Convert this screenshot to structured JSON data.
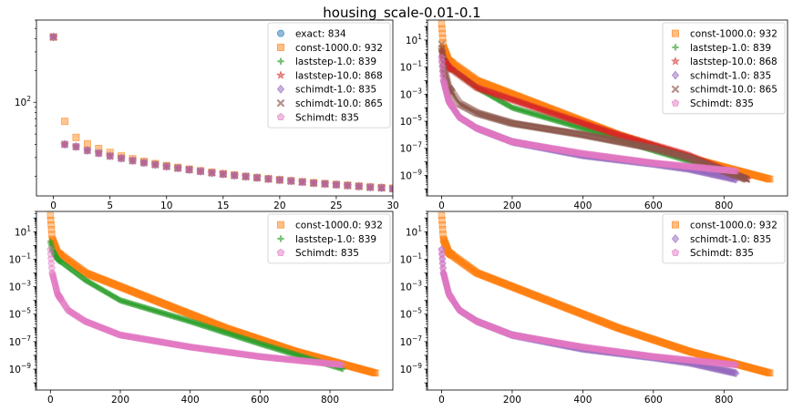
{
  "figure": {
    "title": "housing_scale-0.01-0.1"
  },
  "colors": {
    "exact": "#1f77b4",
    "const-1000.0": "#ff7f0e",
    "laststep-1.0": "#2ca02c",
    "laststep-10.0": "#d62728",
    "schimdt-1.0": "#9467bd",
    "schimdt-10.0": "#8c564b",
    "Schimdt": "#e377c2"
  },
  "chart_data": [
    {
      "type": "scatter",
      "panel": "top-left",
      "title": "",
      "xlabel": "",
      "ylabel": "",
      "xlim": [
        -1.5,
        30
      ],
      "ylim": [
        13,
        600
      ],
      "yscale": "log",
      "grid": false,
      "legend_position": "top-right",
      "x_ticks": [
        0,
        5,
        10,
        15,
        20,
        25,
        30
      ],
      "y_ticks": [
        {
          "value": 100,
          "base": "10",
          "exp": "2"
        }
      ],
      "series": [
        {
          "key": "exact",
          "name": "exact: 834",
          "marker": "circle"
        },
        {
          "key": "const-1000.0",
          "name": "const-1000.0: 932",
          "marker": "square"
        },
        {
          "key": "laststep-1.0",
          "name": "laststep-1.0: 839",
          "marker": "plus"
        },
        {
          "key": "laststep-10.0",
          "name": "laststep-10.0: 868",
          "marker": "star"
        },
        {
          "key": "schimdt-1.0",
          "name": "schimdt-1.0: 835",
          "marker": "diamond"
        },
        {
          "key": "schimdt-10.0",
          "name": "schimdt-10.0: 865",
          "marker": "xcross"
        },
        {
          "key": "Schimdt",
          "name": "Schimdt: 835",
          "marker": "pentagon"
        }
      ],
      "points": {
        "const-1000.0": {
          "x": [
            0,
            1,
            2,
            3,
            4,
            5,
            6,
            7,
            8,
            9,
            10,
            11,
            12,
            13,
            14,
            15,
            16,
            17,
            18,
            19,
            20,
            21,
            22,
            23,
            24,
            25,
            26,
            27,
            28,
            29,
            30
          ],
          "y": [
            415,
            66,
            46.5,
            40.5,
            36.5,
            33.5,
            31,
            29.2,
            27.6,
            26.3,
            25.2,
            24.2,
            23.3,
            22.5,
            21.8,
            21.1,
            20.5,
            19.9,
            19.4,
            18.9,
            18.5,
            18.1,
            17.7,
            17.3,
            17.0,
            16.7,
            16.4,
            16.1,
            15.8,
            15.6,
            15.4
          ]
        },
        "others": {
          "x": [
            0,
            1,
            2,
            3,
            4,
            5,
            6,
            7,
            8,
            9,
            10,
            11,
            12,
            13,
            14,
            15,
            16,
            17,
            18,
            19,
            20,
            21,
            22,
            23,
            24,
            25,
            26,
            27,
            28,
            29,
            30
          ],
          "y": [
            415,
            40,
            38,
            35,
            33,
            31,
            29.5,
            28,
            26.8,
            25.7,
            24.7,
            23.8,
            23.0,
            22.2,
            21.5,
            20.9,
            20.3,
            19.8,
            19.3,
            18.8,
            18.4,
            18.0,
            17.6,
            17.2,
            16.9,
            16.6,
            16.3,
            16.0,
            15.7,
            15.5,
            15.2
          ]
        }
      }
    },
    {
      "type": "scatter",
      "panel": "top-right",
      "title": "",
      "xlabel": "",
      "ylabel": "",
      "xlim": [
        -40,
        980
      ],
      "ylim": [
        3e-11,
        300
      ],
      "yscale": "log",
      "grid": false,
      "legend_position": "top-right",
      "x_ticks": [
        0,
        200,
        400,
        600,
        800
      ],
      "y_ticks": [
        {
          "value": 10,
          "base": "10",
          "exp": "1"
        },
        {
          "value": 0.1,
          "base": "10",
          "exp": "−1"
        },
        {
          "value": 0.001,
          "base": "10",
          "exp": "−3"
        },
        {
          "value": 1e-05,
          "base": "10",
          "exp": "−5"
        },
        {
          "value": 1e-07,
          "base": "10",
          "exp": "−7"
        },
        {
          "value": 1e-09,
          "base": "10",
          "exp": "−9"
        }
      ],
      "series": [
        {
          "key": "const-1000.0",
          "name": "const-1000.0: 932",
          "marker": "square",
          "curve": [
            [
              0,
              150
            ],
            [
              5,
              3
            ],
            [
              20,
              0.3
            ],
            [
              100,
              0.01
            ],
            [
              300,
              0.0001
            ],
            [
              500,
              1e-06
            ],
            [
              700,
              2e-08
            ],
            [
              932,
              5e-10
            ]
          ]
        },
        {
          "key": "laststep-1.0",
          "name": "laststep-1.0: 839",
          "marker": "plus",
          "curve": [
            [
              0,
              2
            ],
            [
              5,
              0.5
            ],
            [
              20,
              0.1
            ],
            [
              100,
              0.003
            ],
            [
              200,
              0.0001
            ],
            [
              400,
              3e-06
            ],
            [
              600,
              7e-08
            ],
            [
              839,
              1e-09
            ]
          ]
        },
        {
          "key": "laststep-10.0",
          "name": "laststep-10.0: 868",
          "marker": "star",
          "curve": [
            [
              0,
              2
            ],
            [
              5,
              0.4
            ],
            [
              20,
              0.1
            ],
            [
              100,
              0.003
            ],
            [
              300,
              5e-05
            ],
            [
              500,
              1e-06
            ],
            [
              700,
              3e-08
            ],
            [
              868,
              5e-10
            ]
          ]
        },
        {
          "key": "schimdt-1.0",
          "name": "schimdt-1.0: 835",
          "marker": "diamond",
          "curve": [
            [
              0,
              0.5
            ],
            [
              5,
              0.01
            ],
            [
              20,
              0.0003
            ],
            [
              50,
              2e-05
            ],
            [
              100,
              3e-06
            ],
            [
              200,
              3e-07
            ],
            [
              400,
              3e-08
            ],
            [
              600,
              7e-09
            ],
            [
              700,
              3e-09
            ],
            [
              835,
              5e-10
            ]
          ]
        },
        {
          "key": "schimdt-10.0",
          "name": "schimdt-10.0: 865",
          "marker": "xcross",
          "curve": [
            [
              0,
              5
            ],
            [
              5,
              0.1
            ],
            [
              20,
              0.003
            ],
            [
              50,
              0.0002
            ],
            [
              100,
              4e-05
            ],
            [
              200,
              7e-06
            ],
            [
              400,
              1e-06
            ],
            [
              600,
              1e-07
            ],
            [
              700,
              2e-08
            ],
            [
              865,
              5e-10
            ]
          ]
        },
        {
          "key": "Schimdt",
          "name": "Schimdt: 835",
          "marker": "pentagon",
          "curve": [
            [
              0,
              0.5
            ],
            [
              5,
              0.01
            ],
            [
              20,
              0.0003
            ],
            [
              50,
              2e-05
            ],
            [
              100,
              3e-06
            ],
            [
              200,
              3e-07
            ],
            [
              400,
              4e-08
            ],
            [
              600,
              8e-09
            ],
            [
              835,
              2e-09
            ]
          ]
        }
      ]
    },
    {
      "type": "scatter",
      "panel": "bottom-left",
      "title": "",
      "xlabel": "",
      "ylabel": "",
      "xlim": [
        -40,
        980
      ],
      "ylim": [
        3e-11,
        300
      ],
      "yscale": "log",
      "grid": false,
      "legend_position": "top-right",
      "x_ticks": [
        0,
        200,
        400,
        600,
        800
      ],
      "y_ticks": [
        {
          "value": 10,
          "base": "10",
          "exp": "1"
        },
        {
          "value": 0.1,
          "base": "10",
          "exp": "−1"
        },
        {
          "value": 0.001,
          "base": "10",
          "exp": "−3"
        },
        {
          "value": 1e-05,
          "base": "10",
          "exp": "−5"
        },
        {
          "value": 1e-07,
          "base": "10",
          "exp": "−7"
        },
        {
          "value": 1e-09,
          "base": "10",
          "exp": "−9"
        }
      ],
      "series": [
        {
          "key": "const-1000.0",
          "name": "const-1000.0: 932",
          "marker": "square",
          "curve": [
            [
              0,
              150
            ],
            [
              5,
              3
            ],
            [
              20,
              0.3
            ],
            [
              100,
              0.01
            ],
            [
              300,
              0.0001
            ],
            [
              500,
              1e-06
            ],
            [
              700,
              2e-08
            ],
            [
              932,
              5e-10
            ]
          ]
        },
        {
          "key": "laststep-1.0",
          "name": "laststep-1.0: 839",
          "marker": "plus",
          "curve": [
            [
              0,
              2
            ],
            [
              5,
              0.5
            ],
            [
              20,
              0.1
            ],
            [
              100,
              0.003
            ],
            [
              200,
              0.0001
            ],
            [
              400,
              3e-06
            ],
            [
              600,
              7e-08
            ],
            [
              839,
              1e-09
            ]
          ]
        },
        {
          "key": "Schimdt",
          "name": "Schimdt: 835",
          "marker": "pentagon",
          "curve": [
            [
              0,
              0.5
            ],
            [
              5,
              0.01
            ],
            [
              20,
              0.0003
            ],
            [
              50,
              2e-05
            ],
            [
              100,
              3e-06
            ],
            [
              200,
              3e-07
            ],
            [
              400,
              4e-08
            ],
            [
              600,
              8e-09
            ],
            [
              835,
              2e-09
            ]
          ]
        }
      ]
    },
    {
      "type": "scatter",
      "panel": "bottom-right",
      "title": "",
      "xlabel": "",
      "ylabel": "",
      "xlim": [
        -40,
        980
      ],
      "ylim": [
        3e-11,
        300
      ],
      "yscale": "log",
      "grid": false,
      "legend_position": "top-right",
      "x_ticks": [
        0,
        200,
        400,
        600,
        800
      ],
      "y_ticks": [
        {
          "value": 10,
          "base": "10",
          "exp": "1"
        },
        {
          "value": 0.1,
          "base": "10",
          "exp": "−1"
        },
        {
          "value": 0.001,
          "base": "10",
          "exp": "−3"
        },
        {
          "value": 1e-05,
          "base": "10",
          "exp": "−5"
        },
        {
          "value": 1e-07,
          "base": "10",
          "exp": "−7"
        },
        {
          "value": 1e-09,
          "base": "10",
          "exp": "−9"
        }
      ],
      "series": [
        {
          "key": "const-1000.0",
          "name": "const-1000.0: 932",
          "marker": "square",
          "curve": [
            [
              0,
              150
            ],
            [
              5,
              3
            ],
            [
              20,
              0.3
            ],
            [
              100,
              0.01
            ],
            [
              300,
              0.0001
            ],
            [
              500,
              1e-06
            ],
            [
              700,
              2e-08
            ],
            [
              932,
              5e-10
            ]
          ]
        },
        {
          "key": "schimdt-1.0",
          "name": "schimdt-1.0: 835",
          "marker": "diamond",
          "curve": [
            [
              0,
              0.5
            ],
            [
              5,
              0.01
            ],
            [
              20,
              0.0003
            ],
            [
              50,
              2e-05
            ],
            [
              100,
              3e-06
            ],
            [
              200,
              3e-07
            ],
            [
              400,
              3e-08
            ],
            [
              600,
              7e-09
            ],
            [
              700,
              3e-09
            ],
            [
              835,
              5e-10
            ]
          ]
        },
        {
          "key": "Schimdt",
          "name": "Schimdt: 835",
          "marker": "pentagon",
          "curve": [
            [
              0,
              0.5
            ],
            [
              5,
              0.01
            ],
            [
              20,
              0.0003
            ],
            [
              50,
              2e-05
            ],
            [
              100,
              3e-06
            ],
            [
              200,
              3e-07
            ],
            [
              400,
              4e-08
            ],
            [
              600,
              8e-09
            ],
            [
              835,
              2e-09
            ]
          ]
        }
      ]
    }
  ]
}
